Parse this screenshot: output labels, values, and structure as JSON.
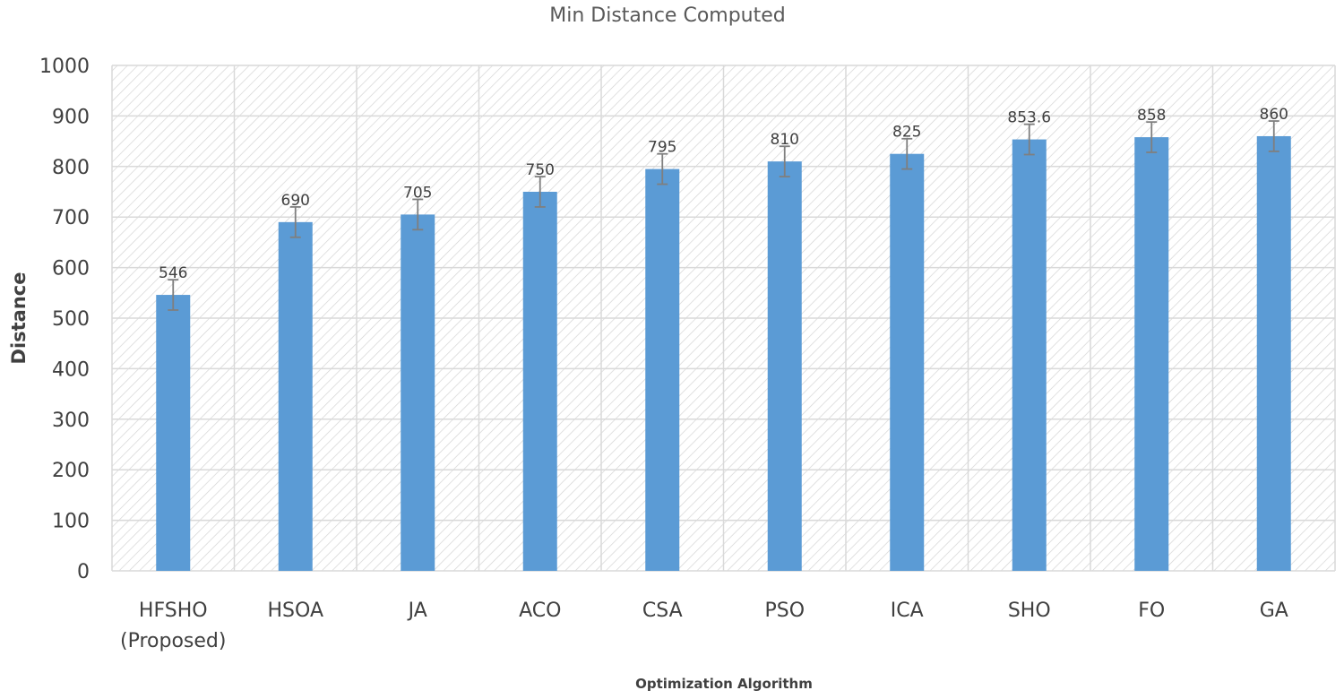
{
  "chart_data": {
    "type": "bar",
    "title": "Min Distance Computed",
    "xlabel": "Optimization Algorithm",
    "ylabel": "Distance",
    "categories": [
      [
        "HFSHO",
        "(Proposed)"
      ],
      [
        "HSOA"
      ],
      [
        "JA"
      ],
      [
        "ACO"
      ],
      [
        "CSA"
      ],
      [
        "PSO"
      ],
      [
        "ICA"
      ],
      [
        "SHO"
      ],
      [
        "FO"
      ],
      [
        "GA"
      ]
    ],
    "values": [
      546,
      690,
      705,
      750,
      795,
      810,
      825,
      853.6,
      858,
      860
    ],
    "value_labels": [
      "546",
      "690",
      "705",
      "750",
      "795",
      "810",
      "825",
      "853.6",
      "858",
      "860"
    ],
    "error_bar": 30,
    "ylim": [
      0,
      1000
    ],
    "yticks": [
      0,
      100,
      200,
      300,
      400,
      500,
      600,
      700,
      800,
      900,
      1000
    ],
    "grid": true,
    "bar_color": "#5b9bd5",
    "error_color": "#7f7f7f",
    "grid_color": "#d9d9d9"
  }
}
